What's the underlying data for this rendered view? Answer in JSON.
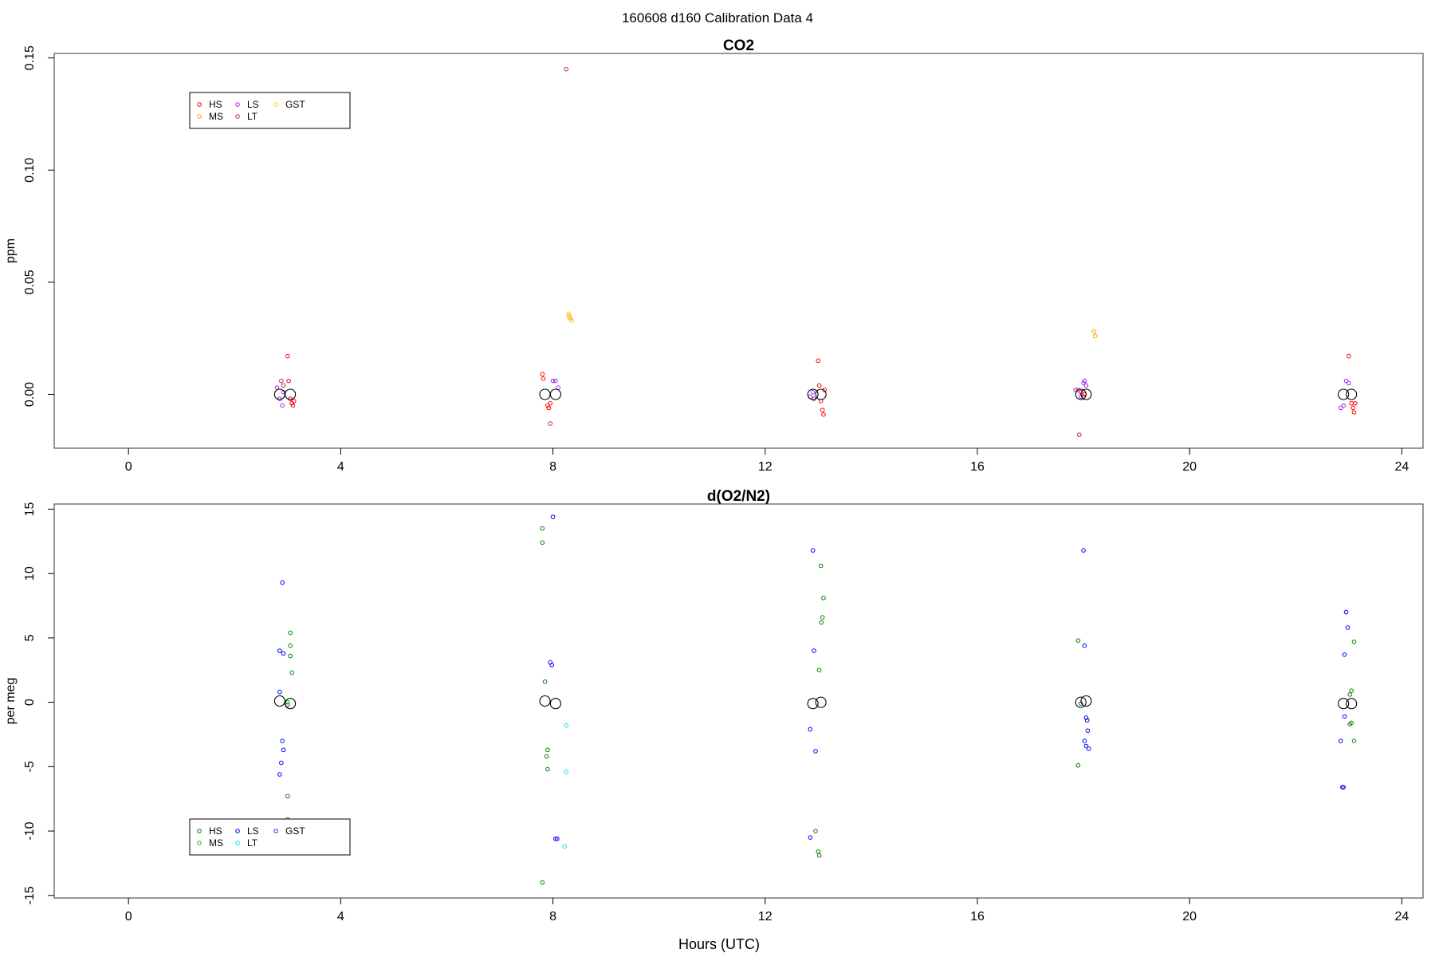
{
  "page_title": "160608   d160   Calibration Data 4",
  "x_axis_label": "Hours (UTC)",
  "chart_data": [
    {
      "type": "scatter",
      "title": "CO2",
      "ylabel": "ppm",
      "xlabel": "",
      "xlim": [
        -1.4,
        24.4
      ],
      "ylim": [
        -0.024,
        0.152
      ],
      "xticks": [
        "0",
        "4",
        "8",
        "12",
        "16",
        "20",
        "24"
      ],
      "yticks": [
        "0.00",
        "0.05",
        "0.10",
        "0.15"
      ],
      "grid": false,
      "legend_position": "top-left",
      "legend": [
        {
          "name": "HS",
          "color": "#ff0000"
        },
        {
          "name": "MS",
          "color": "#ffa500"
        },
        {
          "name": "LS",
          "color": "#a020f0"
        },
        {
          "name": "LT",
          "color": "#b03060"
        },
        {
          "name": "GST",
          "color": "#ffd700"
        }
      ],
      "series": [
        {
          "name": "HS",
          "color": "#ff0000",
          "points": [
            [
              3.0,
              0.017
            ],
            [
              3.02,
              0.006
            ],
            [
              3.05,
              -0.002
            ],
            [
              3.08,
              -0.004
            ],
            [
              3.1,
              -0.005
            ],
            [
              3.12,
              -0.003
            ],
            [
              7.8,
              0.009
            ],
            [
              7.82,
              0.007
            ],
            [
              7.9,
              -0.005
            ],
            [
              7.92,
              -0.006
            ],
            [
              7.95,
              -0.004
            ],
            [
              13.0,
              0.015
            ],
            [
              13.02,
              0.004
            ],
            [
              13.05,
              -0.003
            ],
            [
              13.08,
              -0.007
            ],
            [
              13.1,
              -0.009
            ],
            [
              13.12,
              0.002
            ],
            [
              17.95,
              0.001
            ],
            [
              18.0,
              -0.001
            ],
            [
              18.02,
              0.0
            ],
            [
              23.0,
              0.017
            ],
            [
              23.05,
              -0.004
            ],
            [
              23.08,
              -0.006
            ],
            [
              23.1,
              -0.008
            ],
            [
              23.12,
              -0.004
            ]
          ]
        },
        {
          "name": "MS",
          "color": "#ffa500",
          "points": [
            [
              8.3,
              0.035
            ],
            [
              8.32,
              0.034
            ],
            [
              8.35,
              0.033
            ],
            [
              18.2,
              0.028
            ],
            [
              18.22,
              0.026
            ]
          ]
        },
        {
          "name": "LS",
          "color": "#a020f0",
          "points": [
            [
              2.8,
              0.003
            ],
            [
              2.85,
              -0.002
            ],
            [
              2.9,
              -0.005
            ],
            [
              2.92,
              0.001
            ],
            [
              8.0,
              0.006
            ],
            [
              8.05,
              0.006
            ],
            [
              8.1,
              0.003
            ],
            [
              12.85,
              -0.001
            ],
            [
              12.9,
              0.001
            ],
            [
              12.92,
              -0.002
            ],
            [
              17.9,
              0.002
            ],
            [
              17.95,
              -0.001
            ],
            [
              18.0,
              0.005
            ],
            [
              18.02,
              0.006
            ],
            [
              18.05,
              0.004
            ],
            [
              22.85,
              -0.006
            ],
            [
              22.9,
              -0.005
            ],
            [
              22.95,
              0.006
            ],
            [
              23.0,
              0.005
            ]
          ]
        },
        {
          "name": "LT",
          "color": "#b03060",
          "points": [
            [
              2.88,
              0.006
            ],
            [
              2.92,
              0.004
            ],
            [
              7.95,
              -0.013
            ],
            [
              8.25,
              0.145
            ],
            [
              17.85,
              0.002
            ],
            [
              17.92,
              -0.018
            ]
          ]
        },
        {
          "name": "GST",
          "color": "#ffd700",
          "points": [
            [
              8.3,
              0.036
            ]
          ]
        },
        {
          "name": "",
          "color": "#000000",
          "large": true,
          "points": [
            [
              2.85,
              0.0
            ],
            [
              3.05,
              0.0
            ],
            [
              7.85,
              0.0
            ],
            [
              8.05,
              0.0
            ],
            [
              12.9,
              0.0
            ],
            [
              13.05,
              0.0
            ],
            [
              17.95,
              0.0
            ],
            [
              18.05,
              0.0
            ],
            [
              22.9,
              0.0
            ],
            [
              23.05,
              0.0
            ]
          ]
        }
      ]
    },
    {
      "type": "scatter",
      "title": "d(O2/N2)",
      "ylabel": "per meg",
      "xlabel": "Hours (UTC)",
      "xlim": [
        -1.4,
        24.4
      ],
      "ylim": [
        -15.2,
        15.4
      ],
      "xticks": [
        "0",
        "4",
        "8",
        "12",
        "16",
        "20",
        "24"
      ],
      "yticks": [
        "-15",
        "-10",
        "-5",
        "0",
        "5",
        "10",
        "15"
      ],
      "grid": false,
      "legend_position": "bottom-left",
      "legend": [
        {
          "name": "HS",
          "color": "#008000"
        },
        {
          "name": "MS",
          "color": "#00cc00"
        },
        {
          "name": "LS",
          "color": "#0000ff"
        },
        {
          "name": "LT",
          "color": "#00e5ee"
        },
        {
          "name": "GST",
          "color": "#3333cc"
        }
      ],
      "series": [
        {
          "name": "HS",
          "color": "#008000",
          "points": [
            [
              3.05,
              5.4
            ],
            [
              3.05,
              4.4
            ],
            [
              3.05,
              3.6
            ],
            [
              3.08,
              2.3
            ],
            [
              3.0,
              -0.2
            ],
            [
              3.0,
              -7.3
            ],
            [
              3.0,
              -9.1
            ],
            [
              7.8,
              13.5
            ],
            [
              7.8,
              12.4
            ],
            [
              7.85,
              1.6
            ],
            [
              7.9,
              -3.7
            ],
            [
              7.88,
              -4.2
            ],
            [
              7.9,
              -5.2
            ],
            [
              7.8,
              -14.0
            ],
            [
              13.05,
              10.6
            ],
            [
              13.1,
              8.1
            ],
            [
              13.08,
              6.6
            ],
            [
              13.06,
              6.2
            ],
            [
              13.02,
              2.5
            ],
            [
              12.95,
              -10.0
            ],
            [
              13.0,
              -11.6
            ],
            [
              13.02,
              -11.9
            ],
            [
              17.9,
              4.8
            ],
            [
              17.95,
              -0.1
            ],
            [
              17.9,
              -4.9
            ],
            [
              23.1,
              4.7
            ],
            [
              23.05,
              0.9
            ],
            [
              23.02,
              0.6
            ],
            [
              23.05,
              -1.6
            ],
            [
              23.02,
              -1.7
            ],
            [
              23.1,
              -3.0
            ]
          ]
        },
        {
          "name": "MS",
          "color": "#00cc00",
          "points": [
            [
              3.0,
              0.0
            ]
          ]
        },
        {
          "name": "LS",
          "color": "#0000ff",
          "points": [
            [
              2.9,
              9.3
            ],
            [
              2.85,
              4.0
            ],
            [
              2.92,
              3.8
            ],
            [
              2.85,
              0.8
            ],
            [
              2.9,
              -3.0
            ],
            [
              2.92,
              -3.7
            ],
            [
              2.88,
              -4.7
            ],
            [
              2.85,
              -5.6
            ],
            [
              8.0,
              14.4
            ],
            [
              7.95,
              3.1
            ],
            [
              7.98,
              2.9
            ],
            [
              8.05,
              -10.6
            ],
            [
              8.08,
              -10.6
            ],
            [
              12.9,
              11.8
            ],
            [
              12.92,
              4.0
            ],
            [
              12.85,
              -2.1
            ],
            [
              12.95,
              -3.8
            ],
            [
              12.85,
              -10.5
            ],
            [
              18.0,
              11.8
            ],
            [
              18.02,
              4.4
            ],
            [
              18.05,
              -1.2
            ],
            [
              18.07,
              -1.4
            ],
            [
              18.08,
              -2.2
            ],
            [
              18.02,
              -3.0
            ],
            [
              18.05,
              -3.4
            ],
            [
              18.1,
              -3.6
            ],
            [
              22.95,
              7.0
            ],
            [
              22.98,
              5.8
            ],
            [
              22.92,
              3.7
            ],
            [
              22.92,
              -1.1
            ],
            [
              22.85,
              -3.0
            ],
            [
              22.9,
              -6.6
            ],
            [
              22.88,
              -6.6
            ]
          ]
        },
        {
          "name": "LT",
          "color": "#00e5ee",
          "points": [
            [
              8.25,
              -1.8
            ],
            [
              8.25,
              -5.4
            ],
            [
              8.22,
              -11.2
            ]
          ]
        },
        {
          "name": "GST",
          "color": "#3333cc",
          "points": [
            [
              8.05,
              -10.6
            ]
          ]
        },
        {
          "name": "",
          "color": "#000000",
          "large": true,
          "points": [
            [
              2.85,
              0.1
            ],
            [
              3.05,
              -0.1
            ],
            [
              7.85,
              0.1
            ],
            [
              8.05,
              -0.1
            ],
            [
              12.9,
              -0.1
            ],
            [
              13.05,
              0.0
            ],
            [
              17.95,
              0.0
            ],
            [
              18.05,
              0.1
            ],
            [
              22.9,
              -0.1
            ],
            [
              23.05,
              -0.1
            ]
          ]
        }
      ]
    }
  ]
}
